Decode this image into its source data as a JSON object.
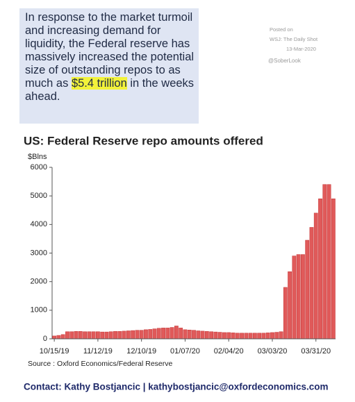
{
  "note_box": {
    "before": "In response to the market turmoil and increasing demand for liquidity, the Federal reserve has massively increased the potential size of outstanding repos to as much as ",
    "highlight": "$5.4 trillion",
    "after": " in the weeks ahead."
  },
  "posted": {
    "label": "Posted on",
    "source": "WSJ: The Daily Shot",
    "date": "13-Mar-2020",
    "handle": "@SoberLook"
  },
  "contact": "Contact: Kathy Bostjancic | kathybostjancic@oxfordeconomics.com",
  "chart_data": {
    "type": "bar",
    "title": "US: Federal Reserve repo amounts offered",
    "y_label": "$Blns",
    "source": "Source : Oxford Economics/Federal Reserve",
    "color": "#e05a5a",
    "categories": [
      "10/15/19",
      null,
      null,
      null,
      null,
      null,
      null,
      null,
      null,
      null,
      "11/12/19",
      null,
      null,
      null,
      null,
      null,
      null,
      null,
      null,
      null,
      "12/10/19",
      null,
      null,
      null,
      null,
      null,
      null,
      null,
      null,
      null,
      "01/07/20",
      null,
      null,
      null,
      null,
      null,
      null,
      null,
      null,
      null,
      "02/04/20",
      null,
      null,
      null,
      null,
      null,
      null,
      null,
      null,
      null,
      "03/03/20",
      null,
      null,
      null,
      null,
      null,
      null,
      null,
      null,
      null,
      "03/31/20",
      null,
      null,
      null,
      null
    ],
    "values": [
      100,
      120,
      150,
      250,
      250,
      260,
      260,
      250,
      250,
      250,
      250,
      240,
      240,
      250,
      260,
      260,
      270,
      280,
      290,
      300,
      300,
      320,
      330,
      350,
      370,
      380,
      380,
      400,
      450,
      380,
      320,
      310,
      300,
      280,
      270,
      260,
      250,
      240,
      230,
      220,
      220,
      210,
      200,
      200,
      200,
      200,
      200,
      200,
      200,
      210,
      220,
      230,
      250,
      1800,
      2350,
      2900,
      2950,
      2950,
      3450,
      3900,
      4400,
      4900,
      5400,
      5400,
      4900
    ],
    "ylim": [
      0,
      6000
    ],
    "yticks": [
      0,
      1000,
      2000,
      3000,
      4000,
      5000,
      6000
    ]
  }
}
